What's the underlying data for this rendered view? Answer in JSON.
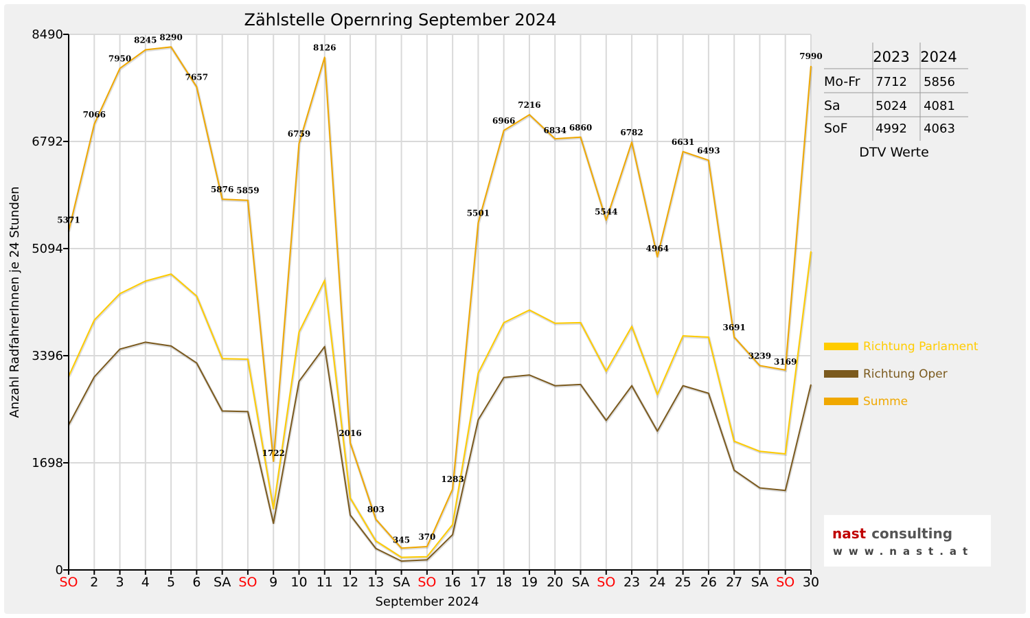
{
  "chart_data": {
    "type": "line",
    "title": "Zählstelle Opernring September 2024",
    "xlabel": "September 2024",
    "ylabel": "Anzahl RadfahrerInnen je 24 Stunden",
    "ylim": [
      0,
      8490
    ],
    "yticks": [
      "8490",
      "6792",
      "5094",
      "3396",
      "1698",
      "0"
    ],
    "ytick_values": [
      8490,
      6792,
      5094,
      3396,
      1698,
      0
    ],
    "categories": [
      "SO",
      "2",
      "3",
      "4",
      "5",
      "6",
      "SA",
      "SO",
      "9",
      "10",
      "11",
      "12",
      "13",
      "SA",
      "SO",
      "16",
      "17",
      "18",
      "19",
      "20",
      "SA",
      "SO",
      "23",
      "24",
      "25",
      "26",
      "27",
      "SA",
      "SO",
      "30"
    ],
    "category_colors": [
      "red",
      "black",
      "black",
      "black",
      "black",
      "black",
      "black",
      "red",
      "black",
      "black",
      "black",
      "black",
      "black",
      "black",
      "red",
      "black",
      "black",
      "black",
      "black",
      "black",
      "black",
      "red",
      "black",
      "black",
      "black",
      "black",
      "black",
      "black",
      "red",
      "black"
    ],
    "grid": true,
    "legend_position": "right",
    "series": [
      {
        "name": "Richtung Parlament",
        "color": "#ffcc00",
        "values": [
          3070,
          3960,
          4380,
          4580,
          4690,
          4340,
          3350,
          3340,
          970,
          3770,
          4590,
          1140,
          460,
          200,
          210,
          720,
          3120,
          3920,
          4120,
          3910,
          3920,
          3150,
          3860,
          2780,
          3710,
          3690,
          2040,
          1880,
          1840,
          5050
        ]
      },
      {
        "name": "Richtung Oper",
        "color": "#7b5a1e",
        "values": [
          2300,
          3060,
          3500,
          3610,
          3550,
          3280,
          2520,
          2510,
          740,
          2990,
          3540,
          870,
          340,
          140,
          160,
          560,
          2380,
          3050,
          3090,
          2920,
          2940,
          2370,
          2920,
          2200,
          2920,
          2800,
          1580,
          1300,
          1260,
          2940
        ]
      },
      {
        "name": "Summe",
        "color": "#f0a800",
        "values": [
          5371,
          7066,
          7950,
          8245,
          8290,
          7657,
          5876,
          5859,
          1722,
          6759,
          8126,
          2016,
          803,
          345,
          370,
          1283,
          5501,
          6966,
          7216,
          6834,
          6860,
          5544,
          6782,
          4964,
          6631,
          6493,
          3691,
          3239,
          3169,
          7990
        ]
      }
    ],
    "data_labels": [
      "5371",
      "7066",
      "7950",
      "8245",
      "8290",
      "7657",
      "5876",
      "5859",
      "1722",
      "6759",
      "8126",
      "2016",
      "803",
      "345",
      "370",
      "1283",
      "5501",
      "6966",
      "7216",
      "6834",
      "6860",
      "5544",
      "6782",
      "4964",
      "6631",
      "6493",
      "3691",
      "3239",
      "3169",
      "7990"
    ]
  },
  "dtv_table": {
    "columns": [
      "",
      "2023",
      "2024"
    ],
    "rows": [
      {
        "label": "Mo-Fr",
        "v2023": "7712",
        "v2024": "5856"
      },
      {
        "label": "Sa",
        "v2023": "5024",
        "v2024": "4081"
      },
      {
        "label": "SoF",
        "v2023": "4992",
        "v2024": "4063"
      }
    ],
    "caption": "DTV Werte"
  },
  "logo": {
    "word1": "nast",
    "word2": "consulting",
    "url": "www.nast.at"
  }
}
